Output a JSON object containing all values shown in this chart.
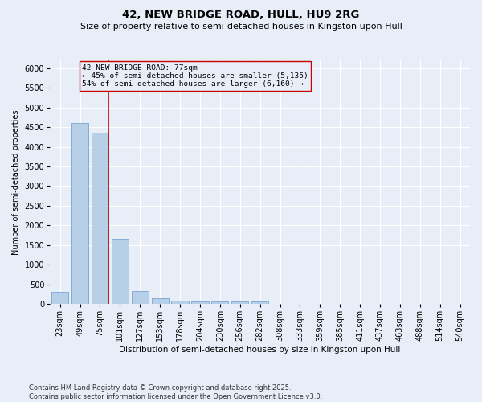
{
  "title": "42, NEW BRIDGE ROAD, HULL, HU9 2RG",
  "subtitle": "Size of property relative to semi-detached houses in Kingston upon Hull",
  "xlabel": "Distribution of semi-detached houses by size in Kingston upon Hull",
  "ylabel": "Number of semi-detached properties",
  "categories": [
    "23sqm",
    "49sqm",
    "75sqm",
    "101sqm",
    "127sqm",
    "153sqm",
    "178sqm",
    "204sqm",
    "230sqm",
    "256sqm",
    "282sqm",
    "308sqm",
    "333sqm",
    "359sqm",
    "385sqm",
    "411sqm",
    "437sqm",
    "463sqm",
    "488sqm",
    "514sqm",
    "540sqm"
  ],
  "values": [
    300,
    4600,
    4350,
    1650,
    340,
    140,
    80,
    60,
    60,
    60,
    55,
    0,
    0,
    0,
    0,
    0,
    0,
    0,
    0,
    0,
    0
  ],
  "bar_color": "#b8cfe8",
  "bar_edge_color": "#6699cc",
  "highlight_bar_index": 2,
  "highlight_line_color": "#cc0000",
  "annotation_text": "42 NEW BRIDGE ROAD: 77sqm\n← 45% of semi-detached houses are smaller (5,135)\n54% of semi-detached houses are larger (6,160) →",
  "annotation_box_color": "#cc0000",
  "annotation_fontsize": 6.8,
  "ylim": [
    0,
    6200
  ],
  "yticks": [
    0,
    500,
    1000,
    1500,
    2000,
    2500,
    3000,
    3500,
    4000,
    4500,
    5000,
    5500,
    6000
  ],
  "background_color": "#e8eef8",
  "grid_color": "#ffffff",
  "footer": "Contains HM Land Registry data © Crown copyright and database right 2025.\nContains public sector information licensed under the Open Government Licence v3.0.",
  "title_fontsize": 9.5,
  "subtitle_fontsize": 8,
  "xlabel_fontsize": 7.5,
  "ylabel_fontsize": 7,
  "tick_fontsize": 7,
  "footer_fontsize": 6
}
